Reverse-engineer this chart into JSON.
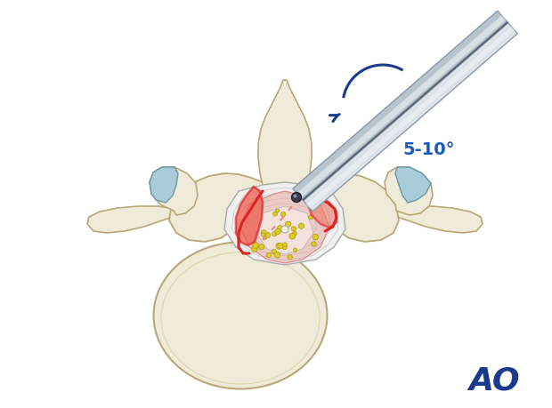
{
  "bg_color": "#ffffff",
  "bone_color": "#f0ead8",
  "bone_color2": "#e8dfc0",
  "bone_edge": "#b8a878",
  "bone_shadow": "#d4c898",
  "cart_color": "#aaccd8",
  "cart_edge": "#6699aa",
  "red_bright": "#dd2222",
  "red_fill": "#ee6655",
  "red_dotted": "#ee8888",
  "inst_light": "#dde4ea",
  "inst_mid": "#b8c4cc",
  "inst_dark": "#8899aa",
  "inst_edge": "#778899",
  "tip_dark": "#3a3a4a",
  "canal_white": "#f0f0ee",
  "canal_gray": "#d8d4cc",
  "canal_lines": "#aaaaaa",
  "cord_red": "#cc3333",
  "cord_pink": "#e8a8a0",
  "cord_light": "#f8e8e4",
  "yellow_dot": "#ddcc22",
  "yellow_dot_edge": "#aa9910",
  "ao_blue": "#1a3a8c",
  "angle_blue": "#1a5bbf",
  "angle_label": "5-10°",
  "figsize": [
    6.2,
    4.59
  ],
  "dpi": 100
}
